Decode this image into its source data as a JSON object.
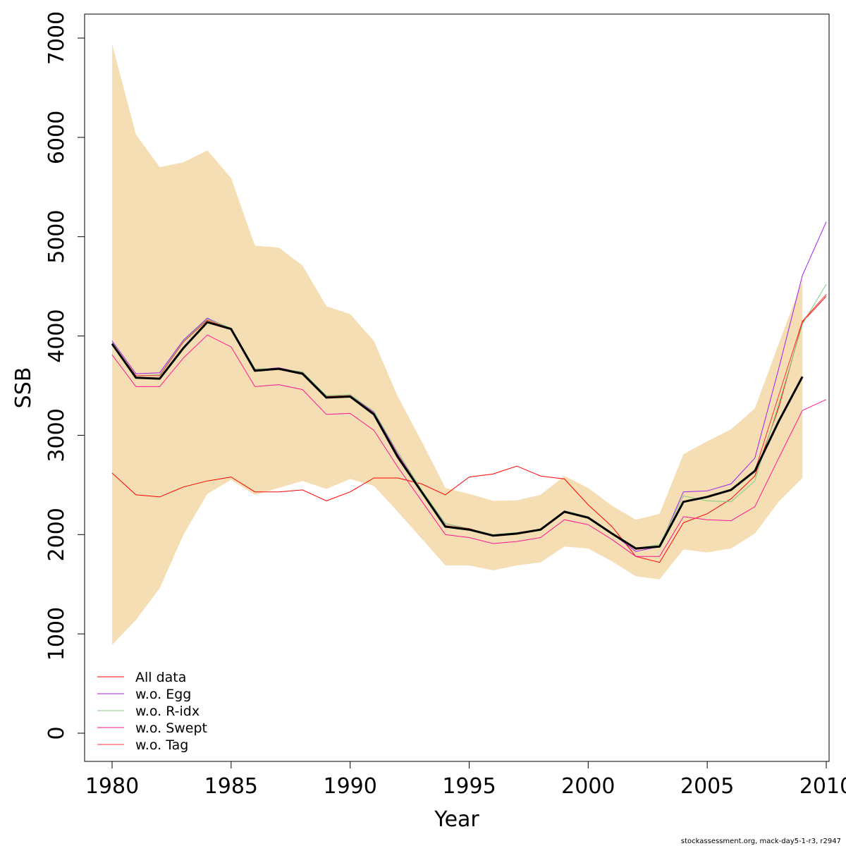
{
  "chart_data": {
    "type": "line",
    "xlabel": "Year",
    "ylabel": "SSB",
    "xlim": [
      1979,
      2010
    ],
    "ylim": [
      -280,
      7230
    ],
    "x_ticks": [
      1980,
      1985,
      1990,
      1995,
      2000,
      2005,
      2010
    ],
    "y_ticks": [
      0,
      1000,
      2000,
      3000,
      4000,
      5000,
      6000,
      7000
    ],
    "band_color": "#f5deb3",
    "main_color": "#000000",
    "legend_position": "bottom-left",
    "grid": false,
    "confidence_band": {
      "x": [
        1980,
        1981,
        1982,
        1983,
        1984,
        1985,
        1986,
        1987,
        1988,
        1989,
        1990,
        1991,
        1992,
        1993,
        1994,
        1995,
        1996,
        1997,
        1998,
        1999,
        2000,
        2001,
        2002,
        2003,
        2004,
        2005,
        2006,
        2007,
        2008,
        2009
      ],
      "upper": [
        6940,
        6030,
        5700,
        5750,
        5870,
        5590,
        4910,
        4890,
        4710,
        4300,
        4220,
        3950,
        3390,
        2940,
        2470,
        2410,
        2340,
        2345,
        2400,
        2590,
        2470,
        2290,
        2150,
        2210,
        2810,
        2940,
        3060,
        3270,
        3920,
        4560
      ],
      "lower": [
        890,
        1140,
        1460,
        2000,
        2410,
        2550,
        2400,
        2470,
        2540,
        2460,
        2560,
        2490,
        2230,
        1960,
        1690,
        1690,
        1640,
        1690,
        1720,
        1880,
        1860,
        1730,
        1580,
        1550,
        1850,
        1820,
        1860,
        2010,
        2330,
        2570
      ]
    },
    "main_series": {
      "x": [
        1980,
        1981,
        1982,
        1983,
        1984,
        1985,
        1986,
        1987,
        1988,
        1989,
        1990,
        1991,
        1992,
        1993,
        1994,
        1995,
        1996,
        1997,
        1998,
        1999,
        2000,
        2001,
        2002,
        2003,
        2004,
        2005,
        2006,
        2007,
        2008,
        2009
      ],
      "values": [
        3920,
        3580,
        3570,
        3880,
        4140,
        4070,
        3650,
        3670,
        3620,
        3380,
        3390,
        3210,
        2780,
        2430,
        2080,
        2050,
        1990,
        2010,
        2050,
        2230,
        2170,
        2010,
        1860,
        1880,
        2330,
        2380,
        2450,
        2640,
        3140,
        3590
      ]
    },
    "series": [
      {
        "name": "All data",
        "color": "#ff0000",
        "x": [
          1980,
          1981,
          1982,
          1983,
          1984,
          1985,
          1986,
          1987,
          1988,
          1989,
          1990,
          1991,
          1992,
          1993,
          1994,
          1995,
          1996,
          1997,
          1998,
          1999,
          2000,
          2001,
          2002,
          2003,
          2004,
          2005,
          2006,
          2007,
          2008,
          2009,
          2010
        ],
        "values": [
          2620,
          2400,
          2380,
          2480,
          2540,
          2580,
          2430,
          2430,
          2450,
          2340,
          2430,
          2570,
          2570,
          2510,
          2400,
          2580,
          2610,
          2690,
          2590,
          2560,
          2300,
          2080,
          1780,
          1720,
          2120,
          2210,
          2360,
          2590,
          3280,
          4140,
          4400
        ]
      },
      {
        "name": "w.o. Egg",
        "color": "#a020f0",
        "x": [
          1980,
          1981,
          1982,
          1983,
          1984,
          1985,
          1986,
          1987,
          1988,
          1989,
          1990,
          1991,
          1992,
          1993,
          1994,
          1995,
          1996,
          1997,
          1998,
          1999,
          2000,
          2001,
          2002,
          2003,
          2004,
          2005,
          2006,
          2007,
          2008,
          2009,
          2010
        ],
        "values": [
          3950,
          3620,
          3630,
          3960,
          4180,
          4070,
          3660,
          3680,
          3630,
          3390,
          3400,
          3230,
          2810,
          2440,
          2110,
          2060,
          1990,
          2010,
          2050,
          2240,
          2180,
          2010,
          1830,
          1880,
          2430,
          2440,
          2510,
          2770,
          3670,
          4610,
          5150
        ]
      },
      {
        "name": "w.o. R-idx",
        "color": "#7ccd7c",
        "x": [
          1980,
          1981,
          1982,
          1983,
          1984,
          1985,
          1986,
          1987,
          1988,
          1989,
          1990,
          1991,
          1992,
          1993,
          1994,
          1995,
          1996,
          1997,
          1998,
          1999,
          2000,
          2001,
          2002,
          2003,
          2004,
          2005,
          2006,
          2007,
          2008,
          2009,
          2010
        ],
        "values": [
          3930,
          3600,
          3610,
          3950,
          4170,
          4080,
          3670,
          3670,
          3640,
          3400,
          3410,
          3240,
          2830,
          2450,
          2110,
          2060,
          2000,
          2020,
          2040,
          2240,
          2180,
          2010,
          1860,
          1900,
          2390,
          2340,
          2330,
          2540,
          3310,
          4120,
          4520
        ]
      },
      {
        "name": "w.o. Swept",
        "color": "#ff1493",
        "x": [
          1980,
          1981,
          1982,
          1983,
          1984,
          1985,
          1986,
          1987,
          1988,
          1989,
          1990,
          1991,
          1992,
          1993,
          1994,
          1995,
          1996,
          1997,
          1998,
          1999,
          2000,
          2001,
          2002,
          2003,
          2004,
          2005,
          2006,
          2007,
          2008,
          2009,
          2010
        ],
        "values": [
          3810,
          3490,
          3490,
          3780,
          4010,
          3890,
          3490,
          3510,
          3460,
          3210,
          3220,
          3050,
          2680,
          2340,
          2000,
          1970,
          1910,
          1930,
          1970,
          2150,
          2100,
          1950,
          1780,
          1780,
          2180,
          2150,
          2140,
          2280,
          2770,
          3250,
          3360
        ]
      },
      {
        "name": "w.o. Tag",
        "color": "#ff3030",
        "x": [
          1980,
          1981,
          1982,
          1983,
          1984,
          1985,
          1986,
          1987,
          1988,
          1989,
          1990,
          1991,
          1992,
          1993,
          1994,
          1995,
          1996,
          1997,
          1998,
          1999,
          2000,
          2001,
          2002,
          2003,
          2004,
          2005,
          2006,
          2007,
          2008,
          2009,
          2010
        ],
        "values": [
          3930,
          3600,
          3600,
          3940,
          4160,
          4070,
          3660,
          3670,
          3630,
          3390,
          3400,
          3220,
          2800,
          2440,
          2090,
          2060,
          1990,
          2010,
          2050,
          2230,
          2170,
          2010,
          1850,
          1880,
          2330,
          2380,
          2450,
          2640,
          3400,
          4150,
          4420
        ]
      }
    ]
  },
  "footer": "stockassessment.org, mack-day5-1-r3, r2947"
}
